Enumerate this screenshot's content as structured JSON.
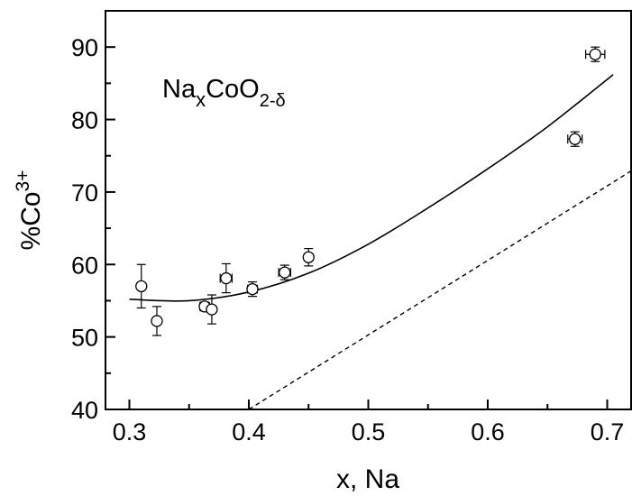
{
  "chart_data": {
    "type": "scatter",
    "title": "",
    "annotation": {
      "base": "Na",
      "sub1": "x",
      "mid": "CoO",
      "sub2": "2-δ"
    },
    "xlabel": "x, Na",
    "ylabel": {
      "base": "%Co",
      "sup": "3+"
    },
    "xlim": [
      0.28,
      0.72
    ],
    "ylim": [
      40,
      95
    ],
    "xticks": [
      0.3,
      0.4,
      0.5,
      0.6,
      0.7
    ],
    "xtick_labels": [
      "0.3",
      "0.4",
      "0.5",
      "0.6",
      "0.7"
    ],
    "yticks": [
      40,
      50,
      60,
      70,
      80,
      90
    ],
    "ytick_labels": [
      "40",
      "50",
      "60",
      "70",
      "80",
      "90"
    ],
    "grid": false,
    "points": [
      {
        "x": 0.31,
        "y": 57.0,
        "yerr": 3.0,
        "xerr": 0
      },
      {
        "x": 0.323,
        "y": 52.2,
        "yerr": 2.0,
        "xerr": 0
      },
      {
        "x": 0.363,
        "y": 54.2,
        "yerr": 0.6,
        "xerr": 0.004
      },
      {
        "x": 0.369,
        "y": 53.8,
        "yerr": 2.0,
        "xerr": 0
      },
      {
        "x": 0.381,
        "y": 58.1,
        "yerr": 2.0,
        "xerr": 0.005
      },
      {
        "x": 0.403,
        "y": 56.6,
        "yerr": 1.0,
        "xerr": 0.004
      },
      {
        "x": 0.43,
        "y": 58.9,
        "yerr": 1.0,
        "xerr": 0.005
      },
      {
        "x": 0.45,
        "y": 61.0,
        "yerr": 1.2,
        "xerr": 0
      },
      {
        "x": 0.673,
        "y": 77.3,
        "yerr": 1.0,
        "xerr": 0.006
      },
      {
        "x": 0.69,
        "y": 89.0,
        "yerr": 1.0,
        "xerr": 0.008
      }
    ],
    "fit_curve": {
      "style": "solid",
      "x": [
        0.3,
        0.35,
        0.4,
        0.45,
        0.5,
        0.55,
        0.6,
        0.65,
        0.705
      ],
      "y": [
        55.2,
        55.0,
        56.2,
        58.8,
        62.8,
        67.8,
        73.2,
        79.0,
        86.2
      ]
    },
    "reference_line": {
      "style": "dashed",
      "x": [
        0.4,
        0.72
      ],
      "y": [
        40,
        72.9
      ]
    }
  }
}
